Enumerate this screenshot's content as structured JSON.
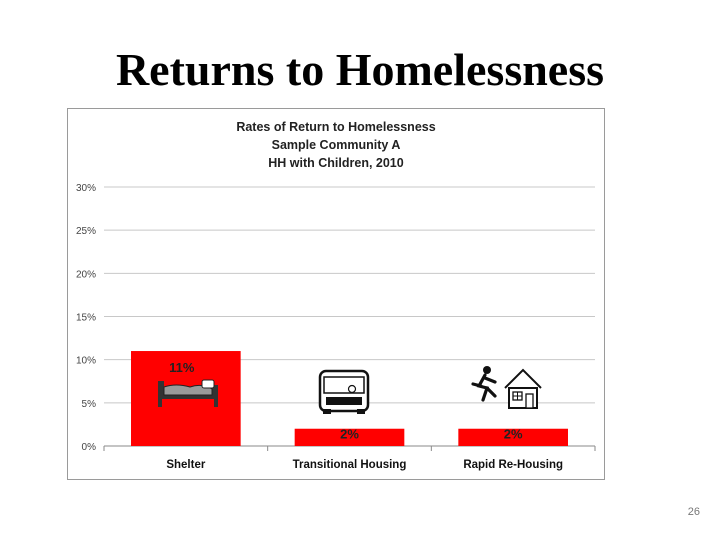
{
  "slide": {
    "title": "Returns to Homelessness",
    "page_number": "26"
  },
  "chart_data": {
    "type": "bar",
    "title": "Rates of Return to Homelessness",
    "subtitle_lines": [
      "Sample Community A",
      "HH with Children, 2010"
    ],
    "categories": [
      "Shelter",
      "Transitional Housing",
      "Rapid Re-Housing"
    ],
    "values": [
      0.11,
      0.02,
      0.02
    ],
    "data_labels": [
      "11%",
      "2%",
      "2%"
    ],
    "ylim": [
      0,
      0.3
    ],
    "yticks": [
      0,
      0.05,
      0.1,
      0.15,
      0.2,
      0.25,
      0.3
    ],
    "ytick_labels": [
      "0%",
      "5%",
      "10%",
      "15%",
      "20%",
      "25%",
      "30%"
    ],
    "grid": true,
    "bar_color": "#ff0000",
    "icons": [
      "bed-icon",
      "bus-icon",
      "running-to-house-icon"
    ]
  }
}
